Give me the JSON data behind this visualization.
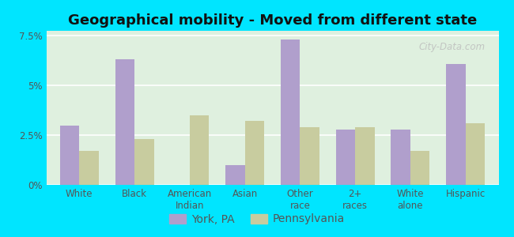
{
  "title": "Geographical mobility - Moved from different state",
  "categories": [
    "White",
    "Black",
    "American\nIndian",
    "Asian",
    "Other\nrace",
    "2+\nraces",
    "White\nalone",
    "Hispanic"
  ],
  "york_values": [
    3.0,
    6.3,
    0.0,
    1.0,
    7.3,
    2.8,
    2.8,
    6.1
  ],
  "pa_values": [
    1.7,
    2.3,
    3.5,
    3.2,
    2.9,
    2.9,
    1.7,
    3.1
  ],
  "york_color": "#b09fcc",
  "pa_color": "#c8cc9f",
  "background_color": "#dff0df",
  "outer_background": "#00e5ff",
  "ylim": [
    0,
    7.75
  ],
  "yticks": [
    0,
    2.5,
    5.0,
    7.5
  ],
  "ytick_labels": [
    "0%",
    "2.5%",
    "5%",
    "7.5%"
  ],
  "york_label": "York, PA",
  "pa_label": "Pennsylvania",
  "title_fontsize": 13,
  "legend_fontsize": 10,
  "tick_fontsize": 8.5,
  "watermark": "City-Data.com"
}
